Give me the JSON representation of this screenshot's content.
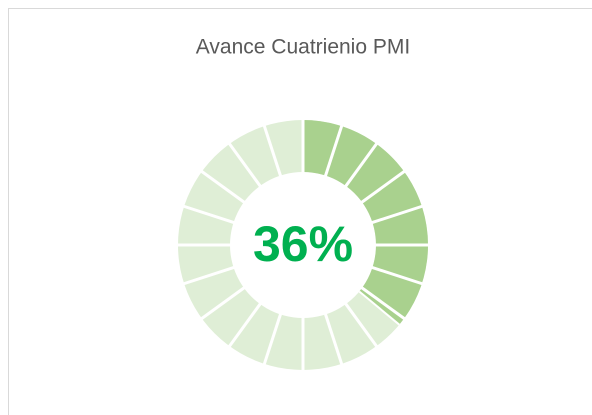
{
  "chart_data": {
    "type": "progress-ring",
    "title": "Avance Cuatrienio PMI",
    "values": [
      36
    ],
    "value_labels": [
      "36%"
    ],
    "color": "#a9d18e",
    "track_color": "#dfeed6",
    "label_color": "#00b050"
  }
}
